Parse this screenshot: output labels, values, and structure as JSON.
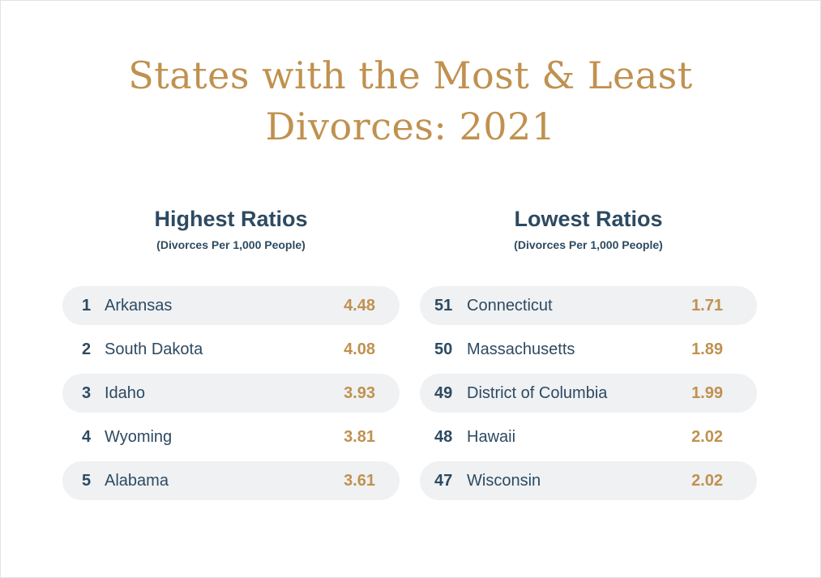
{
  "title_lines": [
    "States with the Most & Least",
    "Divorces: 2021"
  ],
  "highest": {
    "heading": "Highest Ratios",
    "subheading": "(Divorces Per 1,000 People)",
    "rows": [
      {
        "rank": "1",
        "state": "Arkansas",
        "value": "4.48"
      },
      {
        "rank": "2",
        "state": "South Dakota",
        "value": "4.08"
      },
      {
        "rank": "3",
        "state": "Idaho",
        "value": "3.93"
      },
      {
        "rank": "4",
        "state": "Wyoming",
        "value": "3.81"
      },
      {
        "rank": "5",
        "state": "Alabama",
        "value": "3.61"
      }
    ]
  },
  "lowest": {
    "heading": "Lowest Ratios",
    "subheading": "(Divorces Per 1,000 People)",
    "rows": [
      {
        "rank": "51",
        "state": "Connecticut",
        "value": "1.71"
      },
      {
        "rank": "50",
        "state": "Massachusetts",
        "value": "1.89"
      },
      {
        "rank": "49",
        "state": "District of Columbia",
        "value": "1.99"
      },
      {
        "rank": "48",
        "state": "Hawaii",
        "value": "2.02"
      },
      {
        "rank": "47",
        "state": "Wisconsin",
        "value": "2.02"
      }
    ]
  },
  "colors": {
    "accent_gold": "#c0914f",
    "navy": "#2d4a62",
    "row_shade": "#eff1f3"
  }
}
